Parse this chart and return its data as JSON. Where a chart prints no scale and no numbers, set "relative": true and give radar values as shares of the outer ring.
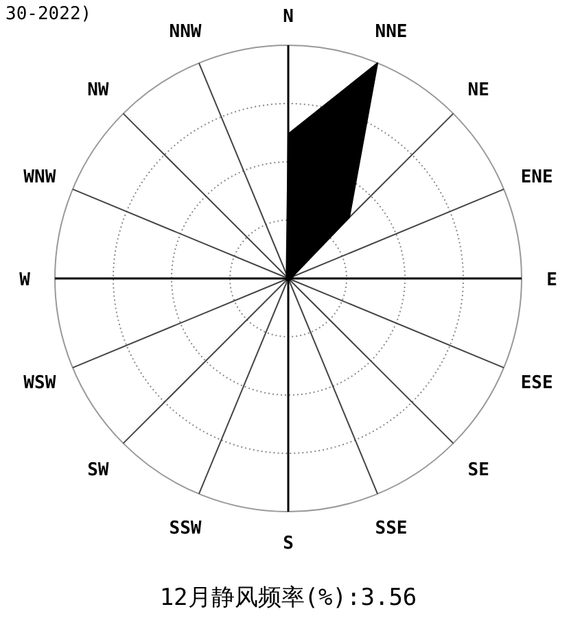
{
  "chart_data": {
    "type": "radar",
    "subtitle": "30-2022)",
    "title": "12月静风频率(%):3.56",
    "categories": [
      "N",
      "NNE",
      "NE",
      "ENE",
      "E",
      "ESE",
      "SE",
      "SSE",
      "S",
      "SSW",
      "SW",
      "WSW",
      "W",
      "WNW",
      "NW",
      "NNW"
    ],
    "relative": true,
    "grid": true,
    "series": [
      {
        "color": "#000000",
        "values": [
          0.62,
          1.0,
          0.37,
          0.02,
          0.02,
          0.01,
          0.01,
          0.01,
          0.01,
          0.01,
          0.01,
          0.01,
          0.01,
          0.01,
          0.01,
          0.02
        ]
      }
    ]
  }
}
